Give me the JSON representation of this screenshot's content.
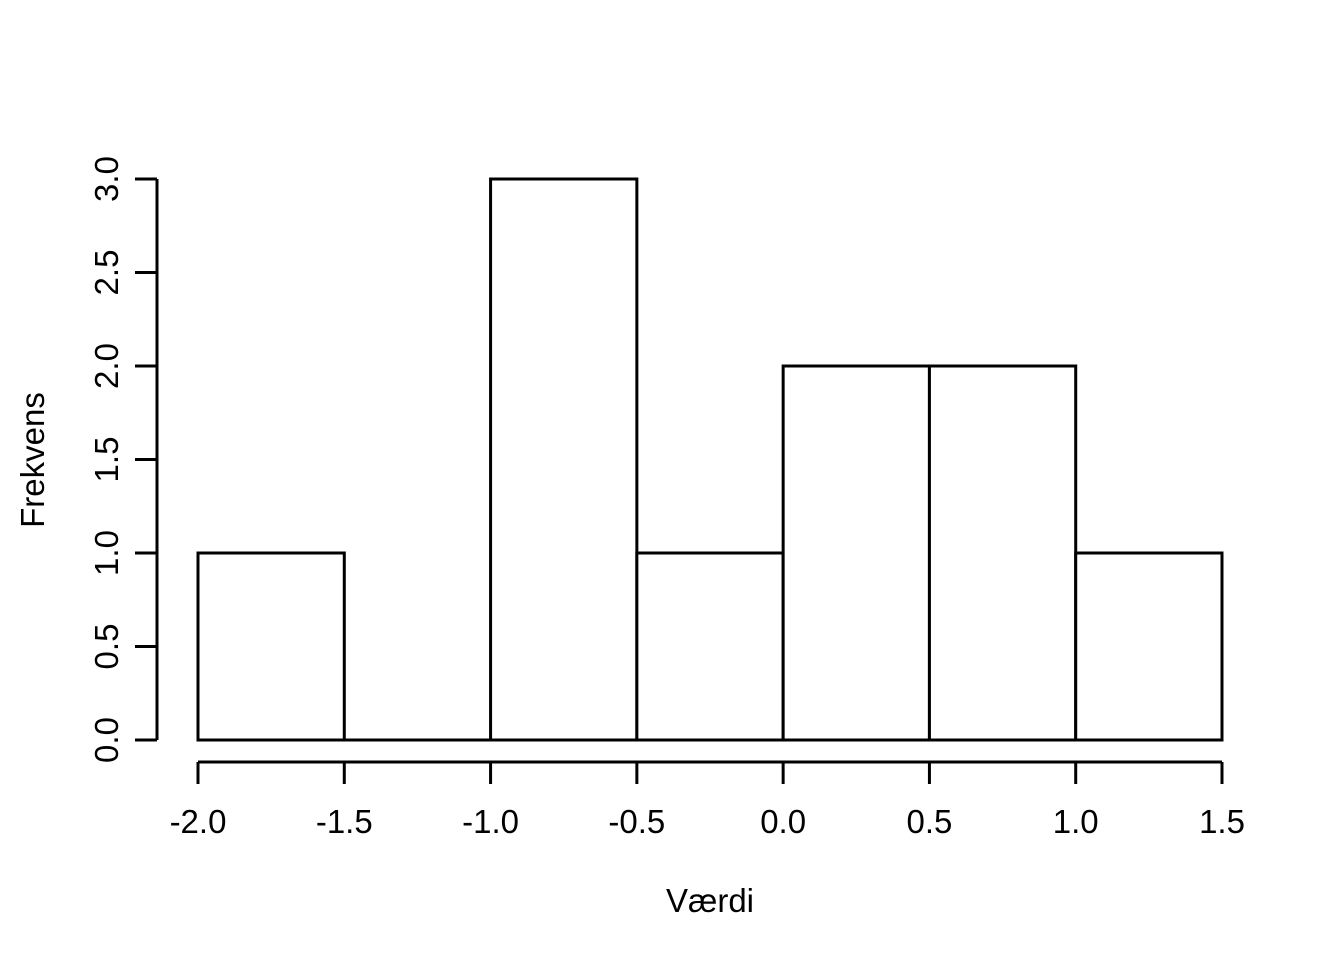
{
  "figure": {
    "background_color": "#ffffff",
    "foreground_color": "#000000"
  },
  "chart_data": {
    "type": "bar",
    "subtype": "histogram",
    "xlabel": "Værdi",
    "ylabel": "Frekvens",
    "bin_breaks": [
      -2.0,
      -1.5,
      -1.0,
      -0.5,
      0.0,
      0.5,
      1.0,
      1.5
    ],
    "counts": [
      1,
      0,
      3,
      1,
      2,
      2,
      1
    ],
    "x_ticks": [
      -2.0,
      -1.5,
      -1.0,
      -0.5,
      0.0,
      0.5,
      1.0,
      1.5
    ],
    "x_tick_labels": [
      "-2.0",
      "-1.5",
      "-1.0",
      "-0.5",
      "0.0",
      "0.5",
      "1.0",
      "1.5"
    ],
    "y_ticks": [
      0.0,
      0.5,
      1.0,
      1.5,
      2.0,
      2.5,
      3.0
    ],
    "y_tick_labels": [
      "0.0",
      "0.5",
      "1.0",
      "1.5",
      "2.0",
      "2.5",
      "3.0"
    ],
    "xlim": [
      -2.0,
      1.5
    ],
    "ylim": [
      0,
      3
    ],
    "bar_fill": "#ffffff",
    "bar_stroke": "#000000",
    "grid": false,
    "legend": null
  }
}
